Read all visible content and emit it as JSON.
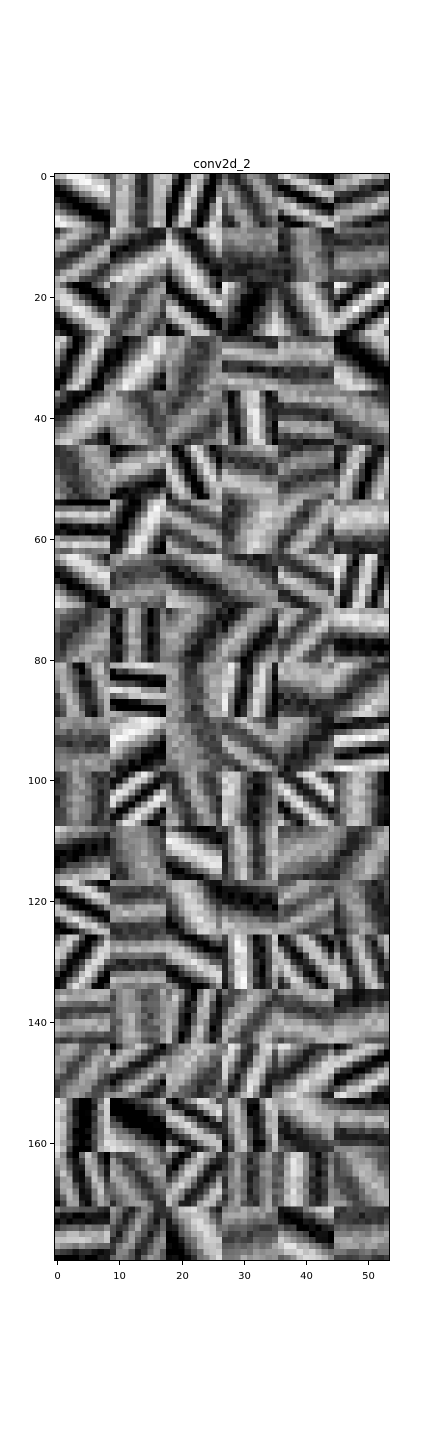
{
  "chart_data": {
    "type": "heatmap",
    "title": "conv2d_2",
    "xlabel": "",
    "ylabel": "",
    "colormap": "gray",
    "grid": false,
    "x_extent": [
      -0.5,
      53.5
    ],
    "y_extent": [
      179.5,
      -0.5
    ],
    "x_ticks": [
      0,
      10,
      20,
      30,
      40,
      50
    ],
    "y_ticks": [
      0,
      20,
      40,
      60,
      80,
      100,
      120,
      140,
      160
    ],
    "tile_grid": {
      "tile_cols": 6,
      "tile_rows": 20,
      "tile_size": 9
    },
    "matrix_shape": [
      180,
      54
    ]
  }
}
